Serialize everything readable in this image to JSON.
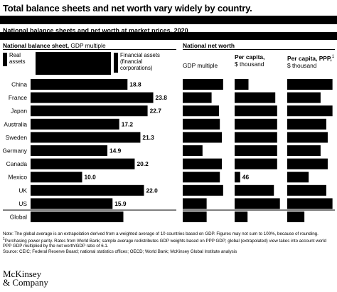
{
  "title": "Total balance sheets and net worth vary widely by country.",
  "subtitle": "National balance sheets and net worth at market prices, 2020",
  "left_panel": {
    "header_bold": "National balance sheet,",
    "header_unit": " GDP multiple",
    "legend_real": "Real\nassets",
    "legend_financial": "Financial assets\n(financial\ncorporations)"
  },
  "right_panel": {
    "header": "National net worth",
    "col1": "GDP multiple",
    "col2_bold": "Per capita,",
    "col2_unit": "$ thousand",
    "col3_bold": "Per capita, PPP,",
    "col3_sup": "1",
    "col3_unit": "$ thousand"
  },
  "chart_data": {
    "type": "bar",
    "categories": [
      "China",
      "France",
      "Japan",
      "Australia",
      "Sweden",
      "Germany",
      "Canada",
      "Mexico",
      "UK",
      "US",
      "Global"
    ],
    "series": [
      {
        "name": "National balance sheet, GDP multiple",
        "values": [
          18.8,
          23.8,
          22.7,
          17.2,
          21.3,
          14.9,
          20.2,
          10.0,
          22.0,
          15.9,
          18.0
        ],
        "labels": [
          "18.8",
          "23.8",
          "22.7",
          "17.2",
          "21.3",
          "14.9",
          "20.2",
          "10.0",
          "22.0",
          "15.9",
          "18.0"
        ]
      }
    ],
    "visible_value_labels": {
      "per_capita_mexico": "46"
    },
    "xlim": [
      0,
      24
    ],
    "grid": false,
    "colors": {
      "bar": "#000000",
      "redaction": "#000000",
      "text": "#000000",
      "background": "#ffffff"
    }
  },
  "footnotes": {
    "note": "Note: The global average is an extrapolation derived from a weighted average of 10 countries based on GDP. Figures may not sum to 100%, because of rounding.",
    "fn1": "Purchasing power parity. Rates from World Bank; sample average redistributes GDP weights based on PPP GDP; global (extrapolated) view takes into account world PPP GDP multiplied by the net worth/GDP ratio of 6.1.",
    "fn1_marker": "1",
    "source": "Source: CEIC; Federal Reserve Board; national statistics offices; OECD; World Bank; McKinsey Global Institute analysis"
  },
  "logo": {
    "line1": "McKinsey",
    "line2": "& Company"
  }
}
